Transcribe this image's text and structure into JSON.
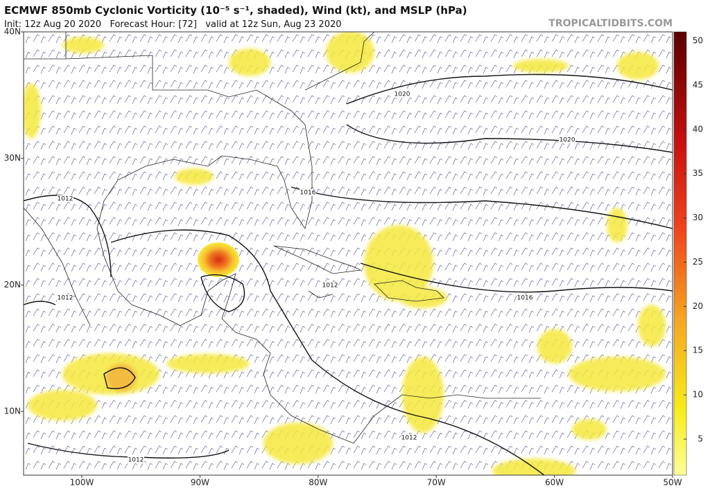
{
  "header": {
    "title": "ECMWF 850mb Cyclonic Vorticity (10⁻⁵ s⁻¹, shaded), Wind (kt), and MSLP (hPa)",
    "subtitle": "Init: 12z Aug 20 2020   Forecast Hour: [72]   valid at 12z Sun, Aug 23 2020",
    "credit": "TROPICALTIDBITS.COM"
  },
  "map": {
    "lat_labels": [
      "40N",
      "30N",
      "20N",
      "10N"
    ],
    "lon_labels": [
      "100W",
      "90W",
      "80W",
      "70W",
      "60W",
      "50W"
    ],
    "isobar_labels": [
      "1020",
      "1020",
      "1016",
      "1012",
      "1012",
      "1016",
      "1012",
      "1012",
      "1012"
    ]
  },
  "colorbar": {
    "ticks": [
      50,
      45,
      40,
      35,
      30,
      25,
      20,
      15,
      10,
      5
    ]
  }
}
